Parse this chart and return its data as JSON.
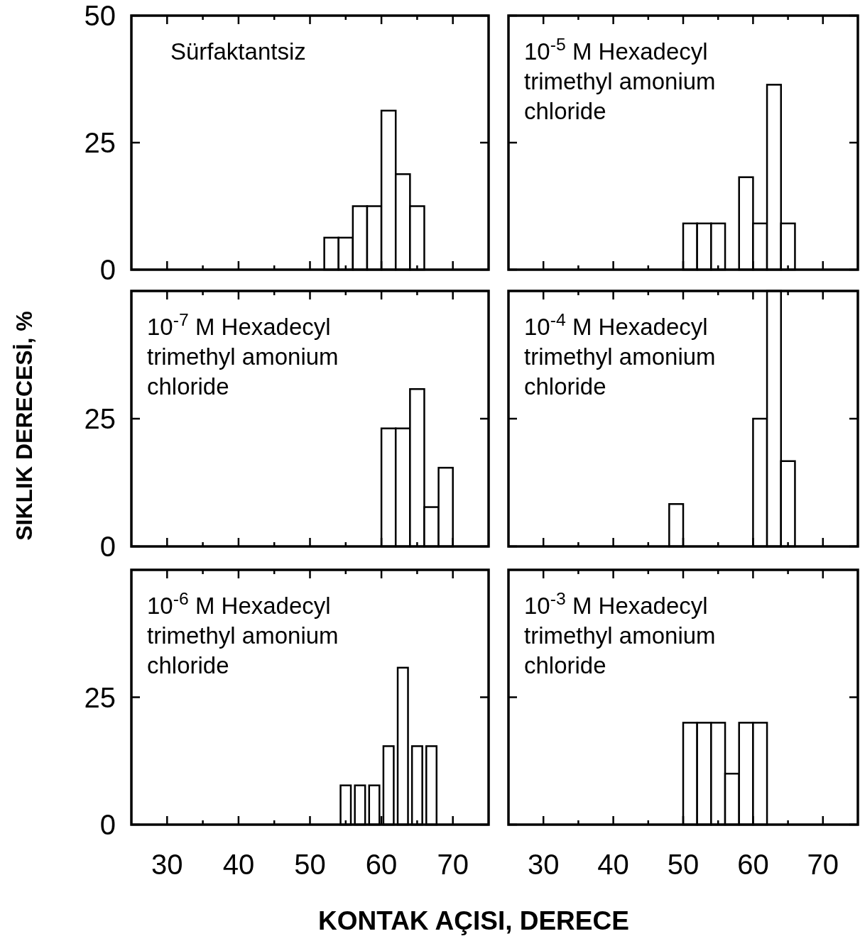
{
  "chart_data": [
    {
      "type": "histogram",
      "bins": [
        52,
        54,
        56,
        58,
        60,
        62,
        64,
        66
      ],
      "values": [
        6.3,
        6.3,
        12.5,
        12.5,
        31.3,
        18.8,
        12.5
      ],
      "xlim": [
        25,
        75
      ],
      "ylim": [
        0,
        50
      ],
      "xticks": [
        30,
        {
          "value": 35,
          "label": null
        },
        40,
        {
          "value": 45,
          "label": null
        },
        50,
        {
          "value": 55,
          "label": null
        },
        60,
        {
          "value": 65,
          "label": null
        },
        70
      ],
      "yticks": [
        0,
        25,
        50
      ],
      "tick_labels": "y",
      "annotations": [
        "Sürfaktantsiz"
      ]
    },
    {
      "type": "histogram",
      "bins": [
        50,
        52,
        54,
        56,
        58,
        60,
        62,
        64,
        66
      ],
      "values": [
        9.1,
        9.1,
        9.1,
        0,
        18.2,
        9.1,
        36.4,
        9.1
      ],
      "xlim": [
        25,
        75
      ],
      "ylim": [
        0,
        50
      ],
      "xticks": [
        30,
        {
          "value": 35,
          "label": null
        },
        40,
        {
          "value": 45,
          "label": null
        },
        50,
        {
          "value": 55,
          "label": null
        },
        60,
        {
          "value": 65,
          "label": null
        },
        70
      ],
      "yticks": [
        0,
        25,
        50
      ],
      "tick_labels": false,
      "annotations": [
        "10$^{-5}$ M Hexadecyl trimethyl amonium chloride"
      ]
    },
    {
      "type": "histogram",
      "bins": [
        60,
        62,
        64,
        66,
        68,
        70
      ],
      "values": [
        23.1,
        23.1,
        30.8,
        7.7,
        15.4
      ],
      "xlim": [
        25,
        75
      ],
      "ylim": [
        0,
        50
      ],
      "xticks": [
        30,
        {
          "value": 35,
          "label": null
        },
        40,
        {
          "value": 45,
          "label": null
        },
        50,
        {
          "value": 55,
          "label": null
        },
        60,
        {
          "value": 65,
          "label": null
        },
        70
      ],
      "yticks": [
        0,
        25
      ],
      "tick_labels": "y",
      "ylabel": "SIKLIK DERECESİ, %",
      "annotations": [
        "10$^{-7}$ M Hexadecyl trimethyl amonium chloride"
      ]
    },
    {
      "type": "histogram",
      "bins": [
        48,
        50,
        52,
        54,
        56,
        58,
        60,
        62,
        64,
        66
      ],
      "values": [
        8.3,
        0,
        0,
        0,
        0,
        0,
        25,
        50,
        16.7
      ],
      "xlim": [
        25,
        75
      ],
      "ylim": [
        0,
        50
      ],
      "xticks": [
        30,
        {
          "value": 35,
          "label": null
        },
        40,
        {
          "value": 45,
          "label": null
        },
        50,
        {
          "value": 55,
          "label": null
        },
        60,
        {
          "value": 65,
          "label": null
        },
        70
      ],
      "yticks": [
        0,
        25
      ],
      "tick_labels": false,
      "annotations": [
        "10$^{-4}$ M Hexadecyl trimethyl amonium chloride"
      ]
    },
    {
      "type": "bar",
      "x": [
        55,
        57,
        59,
        61,
        63,
        65,
        67
      ],
      "values": [
        7.7,
        7.7,
        7.7,
        15.4,
        30.8,
        15.4,
        15.4
      ],
      "xlim": [
        25,
        75
      ],
      "ylim": [
        0,
        50
      ],
      "xticks": [
        30,
        {
          "value": 35,
          "label": null
        },
        40,
        {
          "value": 45,
          "label": null
        },
        50,
        {
          "value": 55,
          "label": null
        },
        60,
        {
          "value": 65,
          "label": null
        },
        70
      ],
      "yticks": [
        0,
        25
      ],
      "xlabel": "KONTAK AÇISI, DERECE",
      "annotations": [
        "10$^{-6}$ M Hexadecyl trimethyl amonium chloride"
      ]
    },
    {
      "type": "histogram",
      "bins": [
        50,
        52,
        54,
        56,
        58,
        60,
        62
      ],
      "values": [
        20,
        20,
        20,
        10,
        20,
        20
      ],
      "xlim": [
        25,
        75
      ],
      "ylim": [
        0,
        50
      ],
      "xticks": [
        30,
        {
          "value": 35,
          "label": null
        },
        40,
        {
          "value": 45,
          "label": null
        },
        50,
        {
          "value": 55,
          "label": null
        },
        60,
        {
          "value": 65,
          "label": null
        },
        70
      ],
      "yticks": [
        0,
        25
      ],
      "tick_labels": "x",
      "annotations": [
        "10$^{-3}$ M Hexadecyl trimethyl amonium chloride"
      ]
    }
  ]
}
